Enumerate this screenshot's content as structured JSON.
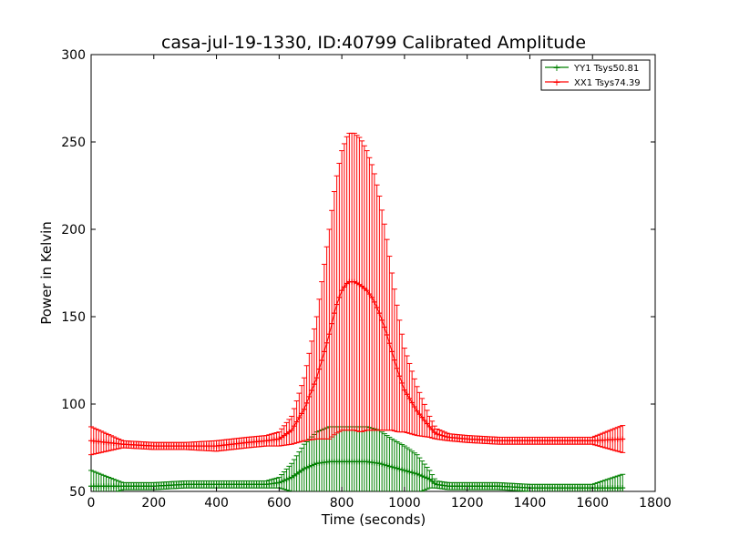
{
  "chart_data": {
    "type": "line",
    "title": "casa-jul-19-1330, ID:40799 Calibrated Amplitude",
    "xlabel": "Time (seconds)",
    "ylabel": "Power in Kelvin",
    "xlim": [
      0,
      1800
    ],
    "ylim": [
      50,
      300
    ],
    "xticks": [
      0,
      200,
      400,
      600,
      800,
      1000,
      1200,
      1400,
      1600,
      1800
    ],
    "yticks": [
      50,
      100,
      150,
      200,
      250,
      300
    ],
    "grid": false,
    "legend_position": "top-right",
    "marker": "+",
    "error_bars": true,
    "series": [
      {
        "name": "YY1 Tsys50.81",
        "color": "#008000",
        "x": [
          0,
          100,
          200,
          300,
          400,
          500,
          560,
          600,
          640,
          680,
          720,
          760,
          800,
          840,
          880,
          920,
          960,
          1000,
          1040,
          1080,
          1100,
          1140,
          1200,
          1300,
          1400,
          1500,
          1600,
          1700
        ],
        "y": [
          53,
          53,
          53,
          54,
          54,
          54,
          54,
          55,
          58,
          63,
          66,
          67,
          67,
          67,
          67,
          66,
          64,
          62,
          60,
          57,
          54,
          53,
          53,
          53,
          52,
          52,
          52,
          52
        ],
        "err": [
          9,
          2,
          2,
          2,
          2,
          2,
          2,
          3,
          8,
          14,
          18,
          20,
          20,
          20,
          20,
          19,
          16,
          14,
          11,
          5,
          2,
          2,
          2,
          2,
          2,
          2,
          2,
          8
        ]
      },
      {
        "name": "XX1 Tsys74.39",
        "color": "#ff0000",
        "x": [
          0,
          100,
          200,
          300,
          400,
          500,
          560,
          600,
          640,
          680,
          720,
          760,
          780,
          800,
          820,
          840,
          860,
          880,
          900,
          920,
          940,
          960,
          980,
          1000,
          1040,
          1080,
          1100,
          1140,
          1200,
          1300,
          1400,
          1500,
          1600,
          1700
        ],
        "y": [
          79,
          77,
          76,
          76,
          76,
          78,
          79,
          80,
          85,
          97,
          115,
          140,
          155,
          165,
          170,
          170,
          168,
          165,
          160,
          152,
          142,
          130,
          118,
          108,
          96,
          87,
          83,
          81,
          80,
          79,
          79,
          79,
          79,
          80
        ],
        "err": [
          8,
          2,
          2,
          2,
          3,
          3,
          3,
          4,
          8,
          18,
          35,
          60,
          72,
          80,
          85,
          85,
          84,
          80,
          75,
          67,
          57,
          45,
          34,
          24,
          14,
          6,
          3,
          2,
          2,
          2,
          2,
          2,
          2,
          8
        ]
      }
    ]
  }
}
